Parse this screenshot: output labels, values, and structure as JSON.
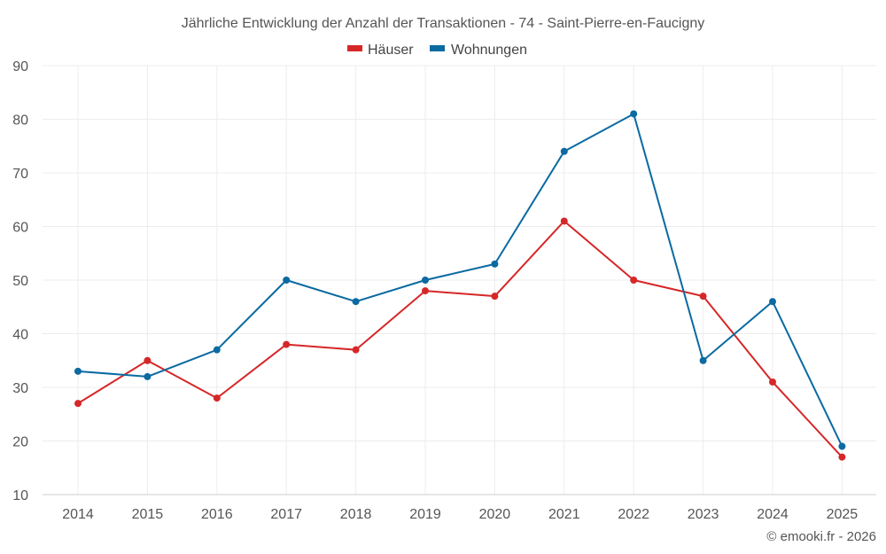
{
  "chart_data": {
    "type": "line",
    "title": "Jährliche Entwicklung der Anzahl der Transaktionen - 74 - Saint-Pierre-en-Faucigny",
    "categories": [
      "2014",
      "2015",
      "2016",
      "2017",
      "2018",
      "2019",
      "2020",
      "2021",
      "2022",
      "2023",
      "2024",
      "2025"
    ],
    "series": [
      {
        "name": "Häuser",
        "color": "#d62728",
        "values": [
          27,
          35,
          28,
          38,
          37,
          48,
          47,
          61,
          50,
          47,
          31,
          17
        ]
      },
      {
        "name": "Wohnungen",
        "color": "#0a6aa1",
        "values": [
          33,
          32,
          37,
          50,
          46,
          50,
          53,
          74,
          81,
          35,
          46,
          19
        ]
      }
    ],
    "ylim": [
      10,
      90
    ],
    "yticks": [
      10,
      20,
      30,
      40,
      50,
      60,
      70,
      80,
      90
    ],
    "xlabel": "",
    "ylabel": "",
    "grid": true,
    "legend_position": "top-center"
  },
  "credit": "© emooki.fr - 2026"
}
